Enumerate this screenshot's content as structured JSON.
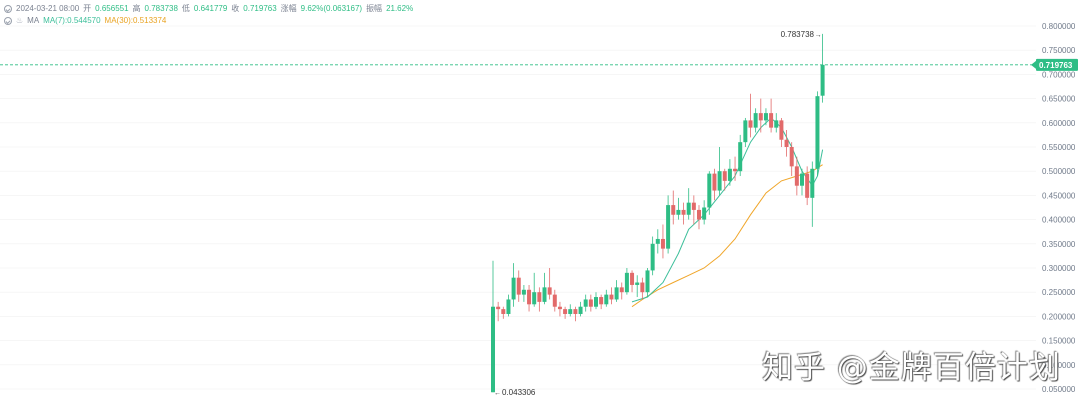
{
  "header": {
    "date": "2024-03-21 08:00",
    "open_label": "开",
    "open": "0.656551",
    "high_label": "高",
    "high": "0.783738",
    "low_label": "低",
    "low": "0.641779",
    "close_label": "收",
    "close": "0.719763",
    "change_label": "涨幅",
    "change": "9.62%(0.063167)",
    "amp_label": "振幅",
    "amp": "21.62%",
    "ma_label": "MA",
    "ma7": "MA(7):0.544570",
    "ma30": "MA(30):0.513374"
  },
  "colors": {
    "up": "#2ebd85",
    "down": "#e26a6a",
    "ma7": "#3cbf9a",
    "ma30": "#f0a62a",
    "grid": "#f0f0f0",
    "axis_text": "#707a8a"
  },
  "watermark": "知乎 @金牌百倍计划",
  "chart_data": {
    "type": "candlestick",
    "y_ticks": [
      "0.800000",
      "0.750000",
      "0.700000",
      "0.650000",
      "0.600000",
      "0.550000",
      "0.500000",
      "0.450000",
      "0.400000",
      "0.350000",
      "0.300000",
      "0.250000",
      "0.200000",
      "0.150000",
      "0.100000",
      "0.050000"
    ],
    "ylim": [
      0.0433,
      0.8
    ],
    "high_marker": "0.783738",
    "low_marker": "0.043306",
    "last_price": "0.719763",
    "candles": [
      [
        0.0433,
        0.22,
        0.0433,
        0.315
      ],
      [
        0.22,
        0.215,
        0.19,
        0.23
      ],
      [
        0.215,
        0.205,
        0.195,
        0.22
      ],
      [
        0.205,
        0.235,
        0.2,
        0.245
      ],
      [
        0.235,
        0.28,
        0.22,
        0.31
      ],
      [
        0.28,
        0.245,
        0.23,
        0.295
      ],
      [
        0.245,
        0.255,
        0.23,
        0.265
      ],
      [
        0.255,
        0.225,
        0.21,
        0.265
      ],
      [
        0.225,
        0.25,
        0.22,
        0.29
      ],
      [
        0.25,
        0.23,
        0.21,
        0.26
      ],
      [
        0.23,
        0.26,
        0.225,
        0.29
      ],
      [
        0.26,
        0.245,
        0.235,
        0.3
      ],
      [
        0.245,
        0.22,
        0.21,
        0.255
      ],
      [
        0.22,
        0.215,
        0.2,
        0.23
      ],
      [
        0.215,
        0.205,
        0.195,
        0.22
      ],
      [
        0.205,
        0.215,
        0.2,
        0.225
      ],
      [
        0.215,
        0.205,
        0.19,
        0.22
      ],
      [
        0.205,
        0.22,
        0.2,
        0.23
      ],
      [
        0.22,
        0.235,
        0.21,
        0.245
      ],
      [
        0.235,
        0.22,
        0.21,
        0.245
      ],
      [
        0.22,
        0.24,
        0.215,
        0.25
      ],
      [
        0.24,
        0.225,
        0.215,
        0.245
      ],
      [
        0.225,
        0.245,
        0.22,
        0.255
      ],
      [
        0.245,
        0.235,
        0.225,
        0.26
      ],
      [
        0.235,
        0.26,
        0.23,
        0.275
      ],
      [
        0.26,
        0.25,
        0.235,
        0.27
      ],
      [
        0.25,
        0.29,
        0.245,
        0.3
      ],
      [
        0.29,
        0.265,
        0.25,
        0.295
      ],
      [
        0.265,
        0.27,
        0.24,
        0.285
      ],
      [
        0.27,
        0.25,
        0.235,
        0.28
      ],
      [
        0.25,
        0.295,
        0.24,
        0.3
      ],
      [
        0.295,
        0.35,
        0.285,
        0.365
      ],
      [
        0.35,
        0.36,
        0.33,
        0.38
      ],
      [
        0.36,
        0.34,
        0.32,
        0.39
      ],
      [
        0.34,
        0.43,
        0.33,
        0.45
      ],
      [
        0.43,
        0.41,
        0.39,
        0.46
      ],
      [
        0.41,
        0.42,
        0.4,
        0.445
      ],
      [
        0.42,
        0.41,
        0.39,
        0.435
      ],
      [
        0.41,
        0.435,
        0.4,
        0.465
      ],
      [
        0.435,
        0.42,
        0.39,
        0.45
      ],
      [
        0.42,
        0.4,
        0.38,
        0.43
      ],
      [
        0.4,
        0.425,
        0.39,
        0.44
      ],
      [
        0.425,
        0.495,
        0.41,
        0.5
      ],
      [
        0.495,
        0.46,
        0.44,
        0.505
      ],
      [
        0.46,
        0.5,
        0.45,
        0.55
      ],
      [
        0.5,
        0.48,
        0.46,
        0.505
      ],
      [
        0.48,
        0.505,
        0.47,
        0.525
      ],
      [
        0.505,
        0.5,
        0.48,
        0.53
      ],
      [
        0.5,
        0.56,
        0.49,
        0.575
      ],
      [
        0.56,
        0.605,
        0.55,
        0.61
      ],
      [
        0.605,
        0.59,
        0.57,
        0.66
      ],
      [
        0.59,
        0.62,
        0.58,
        0.63
      ],
      [
        0.62,
        0.605,
        0.58,
        0.65
      ],
      [
        0.605,
        0.62,
        0.595,
        0.63
      ],
      [
        0.62,
        0.59,
        0.58,
        0.65
      ],
      [
        0.59,
        0.605,
        0.58,
        0.62
      ],
      [
        0.605,
        0.565,
        0.55,
        0.61
      ],
      [
        0.565,
        0.55,
        0.53,
        0.585
      ],
      [
        0.55,
        0.51,
        0.49,
        0.56
      ],
      [
        0.51,
        0.47,
        0.45,
        0.53
      ],
      [
        0.47,
        0.495,
        0.45,
        0.505
      ],
      [
        0.495,
        0.445,
        0.43,
        0.51
      ],
      [
        0.445,
        0.505,
        0.385,
        0.52
      ],
      [
        0.505,
        0.655,
        0.49,
        0.665
      ],
      [
        0.656,
        0.7198,
        0.6418,
        0.7837
      ]
    ],
    "ma7": [
      [
        27,
        0.23
      ],
      [
        30,
        0.24
      ],
      [
        33,
        0.27
      ],
      [
        36,
        0.33
      ],
      [
        38,
        0.38
      ],
      [
        41,
        0.41
      ],
      [
        44,
        0.45
      ],
      [
        47,
        0.49
      ],
      [
        50,
        0.56
      ],
      [
        52,
        0.59
      ],
      [
        54,
        0.61
      ],
      [
        56,
        0.59
      ],
      [
        58,
        0.55
      ],
      [
        60,
        0.5
      ],
      [
        62,
        0.47
      ],
      [
        63,
        0.49
      ],
      [
        64,
        0.5446
      ]
    ],
    "ma30": [
      [
        27,
        0.22
      ],
      [
        29,
        0.235
      ],
      [
        32,
        0.255
      ],
      [
        35,
        0.27
      ],
      [
        38,
        0.285
      ],
      [
        41,
        0.3
      ],
      [
        44,
        0.325
      ],
      [
        47,
        0.36
      ],
      [
        50,
        0.41
      ],
      [
        53,
        0.455
      ],
      [
        56,
        0.48
      ],
      [
        59,
        0.49
      ],
      [
        62,
        0.5
      ],
      [
        64,
        0.5134
      ]
    ]
  }
}
